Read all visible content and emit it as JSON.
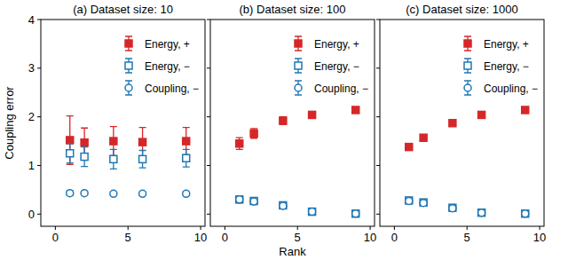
{
  "chart_data": [
    {
      "type": "scatter",
      "title": "(a) Dataset size: 10",
      "y_label": "Coupling error",
      "x": [
        1,
        2,
        4,
        6,
        9
      ],
      "xlim": [
        -1,
        10.3
      ],
      "xticks": [
        0,
        5,
        10
      ],
      "ylim": [
        -0.25,
        4
      ],
      "yticks": [
        0,
        1,
        2,
        3,
        4
      ],
      "legend": "upper right",
      "series": [
        {
          "name": "Energy, +",
          "color": "#d62728",
          "marker": "square",
          "values": [
            1.52,
            1.47,
            1.5,
            1.48,
            1.5
          ],
          "errors": [
            0.5,
            0.3,
            0.3,
            0.3,
            0.28
          ]
        },
        {
          "name": "Energy, −",
          "color": "#1f77b4",
          "marker": "square-open",
          "values": [
            1.25,
            1.18,
            1.13,
            1.13,
            1.15
          ],
          "errors": [
            0.2,
            0.2,
            0.2,
            0.18,
            0.18
          ]
        },
        {
          "name": "Coupling, −",
          "color": "#1f77b4",
          "marker": "circle-open",
          "values": [
            0.43,
            0.43,
            0.42,
            0.42,
            0.42
          ],
          "errors": [
            0.05,
            0.04,
            0.04,
            0.04,
            0.04
          ]
        }
      ]
    },
    {
      "type": "scatter",
      "title": "(b) Dataset size: 100",
      "x_label": "Rank",
      "x": [
        1,
        2,
        4,
        6,
        9
      ],
      "xlim": [
        -1,
        10.3
      ],
      "xticks": [
        0,
        5,
        10
      ],
      "ylim": [
        -0.25,
        4
      ],
      "yticks": [
        0,
        1,
        2,
        3,
        4
      ],
      "legend": "upper right",
      "tick_labels": "x",
      "series": [
        {
          "name": "Energy, +",
          "color": "#d62728",
          "marker": "square",
          "values": [
            1.45,
            1.66,
            1.92,
            2.04,
            2.14
          ],
          "errors": [
            0.12,
            0.1,
            0.08,
            0.06,
            0.06
          ]
        },
        {
          "name": "Energy, −",
          "color": "#1f77b4",
          "marker": "square-open",
          "values": [
            0.3,
            0.27,
            0.18,
            0.05,
            0.01
          ],
          "errors": [
            0.03,
            0.03,
            0.02,
            0.01,
            0.005
          ]
        },
        {
          "name": "Coupling, −",
          "color": "#1f77b4",
          "marker": "circle-open",
          "values": [
            0.3,
            0.26,
            0.17,
            0.05,
            0.01
          ],
          "errors": [
            0.03,
            0.03,
            0.02,
            0.01,
            0.005
          ]
        }
      ]
    },
    {
      "type": "scatter",
      "title": "(c) Dataset size: 1000",
      "x": [
        1,
        2,
        4,
        6,
        9
      ],
      "xlim": [
        -1,
        10.3
      ],
      "xticks": [
        0,
        5,
        10
      ],
      "ylim": [
        -0.25,
        4
      ],
      "yticks": [
        0,
        1,
        2,
        3,
        4
      ],
      "legend": "upper right",
      "tick_labels": "x",
      "series": [
        {
          "name": "Energy, +",
          "color": "#d62728",
          "marker": "square",
          "values": [
            1.38,
            1.57,
            1.87,
            2.04,
            2.14
          ],
          "errors": [
            0.05,
            0.04,
            0.04,
            0.04,
            0.05
          ]
        },
        {
          "name": "Energy, −",
          "color": "#1f77b4",
          "marker": "square-open",
          "values": [
            0.28,
            0.24,
            0.13,
            0.03,
            0.01
          ],
          "errors": [
            0.02,
            0.02,
            0.02,
            0.01,
            0.005
          ]
        },
        {
          "name": "Coupling, −",
          "color": "#1f77b4",
          "marker": "circle-open",
          "values": [
            0.27,
            0.23,
            0.12,
            0.03,
            0.01
          ],
          "errors": [
            0.02,
            0.02,
            0.02,
            0.01,
            0.005
          ]
        }
      ]
    }
  ]
}
